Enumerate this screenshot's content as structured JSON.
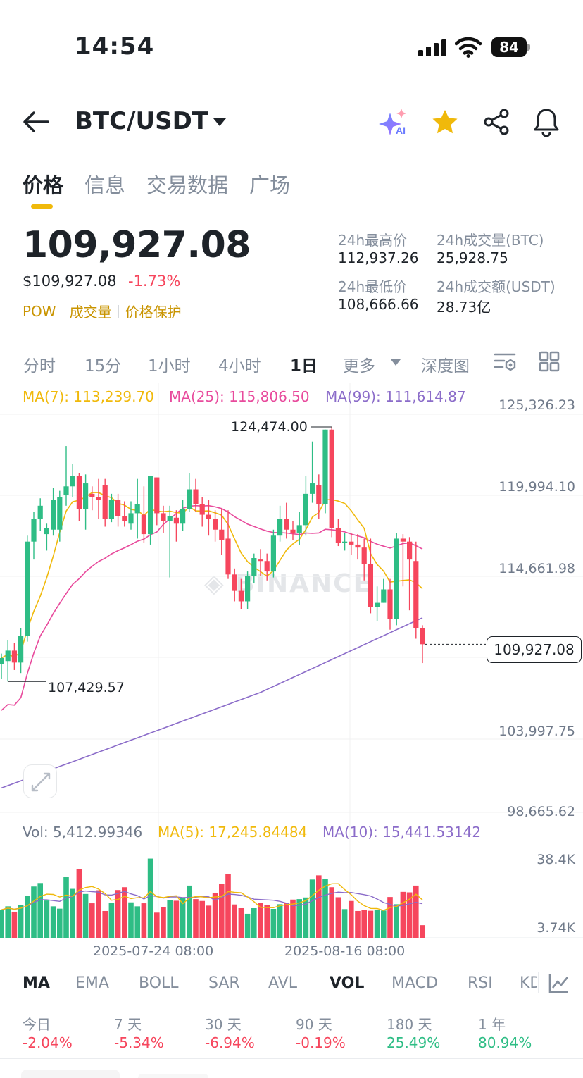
{
  "status_bar": {
    "time": "14:54",
    "battery": "84"
  },
  "header": {
    "pair": "BTC/USDT",
    "ai_badge": "AI"
  },
  "tabs": [
    "价格",
    "信息",
    "交易数据",
    "广场"
  ],
  "price": {
    "last": "109,927.08",
    "usd": "$109,927.08",
    "change_pct": "-1.73%",
    "tags": [
      "POW",
      "成交量",
      "价格保护"
    ]
  },
  "stats": {
    "high_label": "24h最高价",
    "high": "112,937.26",
    "vol_btc_label": "24h成交量(BTC)",
    "vol_btc": "25,928.75",
    "low_label": "24h最低价",
    "low": "108,666.66",
    "vol_usdt_label": "24h成交额(USDT)",
    "vol_usdt": "28.73亿"
  },
  "intervals": [
    "分时",
    "15分",
    "1小时",
    "4小时",
    "1日",
    "更多",
    "深度图"
  ],
  "active_interval": "1日",
  "chart_data": {
    "type": "candlestick",
    "legend": [
      {
        "name": "MA(7)",
        "value": "113,239.70",
        "color": "#f0b90b"
      },
      {
        "name": "MA(25)",
        "value": "115,806.50",
        "color": "#e84a9c"
      },
      {
        "name": "MA(99)",
        "value": "111,614.87",
        "color": "#8b6cc9"
      }
    ],
    "y_ticks": [
      "125,326.23",
      "119,994.10",
      "114,661.98",
      "109,927.08",
      "103,997.75",
      "98,665.62"
    ],
    "y_range": [
      98665.62,
      125326.23
    ],
    "high_marker": "124,474.00",
    "low_marker": "107,429.57",
    "current": "109,927.08",
    "x_labels": [
      "2025-07-24 08:00",
      "2025-08-16 08:00"
    ],
    "volume": {
      "legend": [
        {
          "name": "Vol",
          "value": "5,412.99346",
          "color": "#707a8a"
        },
        {
          "name": "MA(5)",
          "value": "17,245.84484",
          "color": "#f0b90b"
        },
        {
          "name": "MA(10)",
          "value": "15,441.53142",
          "color": "#8b6cc9"
        }
      ],
      "y_ticks": [
        "38.4K",
        "3.74K"
      ]
    },
    "candles": [
      [
        108600,
        109000,
        107600,
        109300
      ],
      [
        108800,
        109500,
        107429.57,
        110200
      ],
      [
        109500,
        108700,
        108200,
        110000
      ],
      [
        108700,
        110500,
        108000,
        111000
      ],
      [
        110500,
        116800,
        110100,
        117200
      ],
      [
        116800,
        118300,
        115600,
        118800
      ],
      [
        118300,
        119200,
        117500,
        119700
      ],
      [
        117300,
        117700,
        116200,
        118000
      ],
      [
        117600,
        119600,
        117200,
        120400
      ],
      [
        117600,
        119800,
        116800,
        120200
      ],
      [
        119900,
        120500,
        119200,
        123200
      ],
      [
        120500,
        121200,
        119800,
        122000
      ],
      [
        121200,
        119000,
        118200,
        121400
      ],
      [
        119000,
        120700,
        117600,
        121300
      ],
      [
        120000,
        119800,
        118900,
        120500
      ],
      [
        119800,
        119600,
        118300,
        121000
      ],
      [
        120600,
        118300,
        117800,
        121000
      ],
      [
        118300,
        119600,
        118100,
        120000
      ],
      [
        119600,
        118500,
        117800,
        120000
      ],
      [
        118500,
        118200,
        117800,
        119500
      ],
      [
        118000,
        118700,
        117600,
        119500
      ],
      [
        118700,
        119300,
        117000,
        121000
      ],
      [
        118600,
        117300,
        116700,
        120500
      ],
      [
        117300,
        121200,
        116600,
        121200
      ],
      [
        121100,
        118700,
        117900,
        121100
      ],
      [
        118700,
        118200,
        117400,
        119200
      ],
      [
        118200,
        118500,
        114400,
        119200
      ],
      [
        118400,
        118000,
        116800,
        118900
      ],
      [
        118000,
        119000,
        117500,
        119600
      ],
      [
        119000,
        120300,
        118800,
        121400
      ],
      [
        120300,
        119300,
        118800,
        121000
      ],
      [
        119300,
        118600,
        117800,
        119800
      ],
      [
        118600,
        118300,
        117200,
        119600
      ],
      [
        118300,
        117600,
        116800,
        118900
      ],
      [
        117600,
        116900,
        115900,
        119000
      ],
      [
        117000,
        114600,
        114300,
        118900
      ],
      [
        114600,
        113500,
        112800,
        115000
      ],
      [
        113500,
        112800,
        112300,
        114300
      ],
      [
        112800,
        114500,
        112300,
        114800
      ],
      [
        114500,
        115700,
        114000,
        116000
      ],
      [
        115600,
        115500,
        114500,
        116300
      ],
      [
        115500,
        114800,
        114200,
        116000
      ],
      [
        114800,
        117200,
        114400,
        117600
      ],
      [
        117200,
        118300,
        116800,
        119200
      ],
      [
        118300,
        117600,
        117000,
        119400
      ],
      [
        117600,
        117400,
        116900,
        118200
      ],
      [
        117400,
        117900,
        116600,
        118800
      ],
      [
        117900,
        120000,
        117200,
        121200
      ],
      [
        120000,
        120700,
        119400,
        123500
      ],
      [
        120600,
        119300,
        118300,
        121300
      ],
      [
        119300,
        124300,
        118700,
        124300
      ],
      [
        124300,
        117700,
        117100,
        124474
      ],
      [
        117700,
        116700,
        116500,
        118300
      ],
      [
        116700,
        116800,
        116200,
        117400
      ],
      [
        116800,
        116600,
        115900,
        117400
      ],
      [
        116600,
        116400,
        115600,
        117300
      ],
      [
        116400,
        115300,
        114200,
        117000
      ],
      [
        115300,
        112400,
        112000,
        117000
      ],
      [
        112400,
        112700,
        111500,
        113800
      ],
      [
        112700,
        113600,
        112700,
        114300
      ],
      [
        113600,
        111600,
        110900,
        114300
      ],
      [
        111600,
        117000,
        111200,
        117400
      ],
      [
        117000,
        116800,
        113800,
        117300
      ],
      [
        116800,
        115600,
        112200,
        117100
      ],
      [
        115500,
        111000,
        110300,
        116800
      ],
      [
        111000,
        109927.08,
        108666.66,
        111200
      ]
    ],
    "volume_values": [
      12000,
      13500,
      11200,
      14100,
      18000,
      22000,
      23500,
      16000,
      13500,
      12500,
      26000,
      21000,
      29500,
      18800,
      14800,
      20400,
      11500,
      15100,
      20500,
      21700,
      15200,
      13500,
      14800,
      34000,
      10800,
      13100,
      16300,
      15900,
      17200,
      22400,
      16600,
      15800,
      13800,
      19200,
      23000,
      27400,
      14300,
      12700,
      10300,
      12700,
      15100,
      14100,
      12400,
      14400,
      15100,
      16400,
      16600,
      17300,
      25000,
      26800,
      25200,
      21700,
      17400,
      12300,
      15800,
      11500,
      11900,
      11600,
      12000,
      11700,
      17500,
      14400,
      19700,
      19500,
      22400,
      5400
    ]
  },
  "indicators": [
    "MA",
    "EMA",
    "BOLL",
    "SAR",
    "AVL",
    "VOL",
    "MACD",
    "RSI",
    "KDJ"
  ],
  "performance": [
    {
      "label": "今日",
      "value": "-2.04%",
      "dir": "neg"
    },
    {
      "label": "7 天",
      "value": "-5.34%",
      "dir": "neg"
    },
    {
      "label": "30 天",
      "value": "-6.94%",
      "dir": "neg"
    },
    {
      "label": "90 天",
      "value": "-0.19%",
      "dir": "neg"
    },
    {
      "label": "180 天",
      "value": "25.49%",
      "dir": "pos"
    },
    {
      "label": "1 年",
      "value": "80.94%",
      "dir": "pos"
    }
  ]
}
